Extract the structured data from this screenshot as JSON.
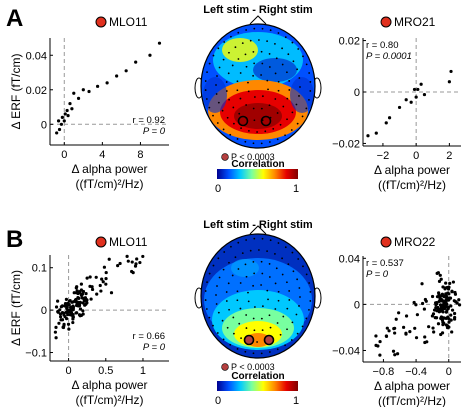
{
  "panels": [
    {
      "letter": "A",
      "center_title": "Left stim - Right stim",
      "topo_marker_label": "P < 0.0003",
      "colorbar": {
        "title": "Correlation",
        "min_label": "0",
        "max_label": "1"
      },
      "colormap": [
        "#00008f",
        "#0050ff",
        "#00c8ff",
        "#78ffa0",
        "#ffff00",
        "#ff8800",
        "#e60000",
        "#800000"
      ]
    },
    {
      "letter": "B",
      "center_title": "Left stim - Right stim",
      "topo_marker_label": "P < 0.0003",
      "colorbar": {
        "title": "Correlation",
        "min_label": "0",
        "max_label": "1"
      },
      "colormap": [
        "#00008f",
        "#0050ff",
        "#00c8ff",
        "#78ffa0",
        "#ffff00",
        "#ff8800",
        "#e60000",
        "#800000"
      ]
    }
  ],
  "chart_data": [
    {
      "type": "scatter",
      "title": "MLO11",
      "xlabel": "Δ alpha power",
      "xlabel2": "((fT/cm)²/Hz)",
      "ylabel": "Δ ERF (fT/cm)",
      "xlim": [
        -1.5,
        11
      ],
      "ylim": [
        -0.012,
        0.05
      ],
      "xticks": [
        0,
        4,
        8
      ],
      "xtick_labels": [
        "0",
        "4",
        "8"
      ],
      "yticks": [
        0,
        0.02,
        0.04
      ],
      "ytick_labels": [
        "0",
        "0.02",
        "0.04"
      ],
      "stats": [
        "r = 0.92",
        "P = 0"
      ],
      "stats_position": "bottom-right",
      "points": [
        [
          -0.8,
          -0.005
        ],
        [
          -0.6,
          0.002
        ],
        [
          -0.5,
          -0.003
        ],
        [
          -0.3,
          0.0
        ],
        [
          -0.2,
          0.004
        ],
        [
          0.0,
          0.002
        ],
        [
          0.1,
          0.006
        ],
        [
          0.3,
          0.008
        ],
        [
          0.4,
          0.005
        ],
        [
          0.6,
          0.012
        ],
        [
          0.8,
          0.009
        ],
        [
          1.0,
          0.018
        ],
        [
          1.5,
          0.015
        ],
        [
          2.0,
          0.02
        ],
        [
          2.6,
          0.019
        ],
        [
          3.5,
          0.022
        ],
        [
          4.5,
          0.024
        ],
        [
          5.5,
          0.028
        ],
        [
          6.5,
          0.031
        ],
        [
          7.5,
          0.036
        ],
        [
          9.0,
          0.04
        ],
        [
          10.0,
          0.047
        ]
      ]
    },
    {
      "type": "scatter",
      "title": "MRO21",
      "xlabel": "Δ alpha power",
      "xlabel2": "((fT/cm)²/Hz)",
      "ylabel": "",
      "xlim": [
        -3.2,
        2.7
      ],
      "ylim": [
        -0.021,
        0.021
      ],
      "xticks": [
        -2,
        0,
        2
      ],
      "xtick_labels": [
        "−2",
        "0",
        "2"
      ],
      "yticks": [
        -0.02,
        0,
        0.02
      ],
      "ytick_labels": [
        "−0.02",
        "0",
        "0.02"
      ],
      "stats": [
        "r = 0.80",
        "P = 0.0001"
      ],
      "stats_position": "top-left",
      "points": [
        [
          -2.9,
          -0.017
        ],
        [
          -2.4,
          -0.016
        ],
        [
          -1.8,
          -0.012
        ],
        [
          -1.6,
          -0.01
        ],
        [
          -1.0,
          -0.006
        ],
        [
          -0.6,
          -0.003
        ],
        [
          -0.3,
          -0.004
        ],
        [
          -0.1,
          0.001
        ],
        [
          0.0,
          -0.002
        ],
        [
          0.1,
          0.001
        ],
        [
          0.3,
          0.003
        ],
        [
          0.5,
          -0.001
        ],
        [
          2.0,
          0.004
        ],
        [
          2.1,
          0.008
        ]
      ]
    },
    {
      "type": "scatter",
      "title": "MLO11",
      "xlabel": "Δ alpha power",
      "xlabel2": "((fT/cm)²/Hz)",
      "ylabel": "Δ ERF (fT/cm)",
      "xlim": [
        -0.25,
        1.35
      ],
      "ylim": [
        -0.12,
        0.13
      ],
      "xticks": [
        0,
        0.5,
        1
      ],
      "xtick_labels": [
        "0",
        "0.5",
        "1"
      ],
      "yticks": [
        -0.1,
        0,
        0.1
      ],
      "ytick_labels": [
        "−0.1",
        "0",
        "0.1"
      ],
      "stats": [
        "r = 0.66",
        "P = 0"
      ],
      "stats_position": "bottom-right",
      "scatter_trend": {
        "n": 150,
        "slope": 0.14,
        "intercept": 0.0,
        "noise": 0.02,
        "x_center": 0.05,
        "x_spread": 0.12,
        "x_tail": 1.3,
        "seed": 7
      }
    },
    {
      "type": "scatter",
      "title": "MRO22",
      "xlabel": "Δ alpha power",
      "xlabel2": "((fT/cm)²/Hz)",
      "ylabel": "",
      "xlim": [
        -1.05,
        0.15
      ],
      "ylim": [
        -0.05,
        0.042
      ],
      "xticks": [
        -0.8,
        -0.4,
        0
      ],
      "xtick_labels": [
        "−0.8",
        "−0.4",
        "0"
      ],
      "yticks": [
        -0.04,
        0,
        0.04
      ],
      "ytick_labels": [
        "−0.04",
        "0",
        "0.04"
      ],
      "stats": [
        "r = 0.537",
        "P = 0"
      ],
      "stats_position": "top-left",
      "scatter_trend": {
        "n": 160,
        "slope": 0.035,
        "intercept": 0.0,
        "noise": 0.011,
        "x_center": -0.05,
        "x_spread": 0.08,
        "x_tail": -0.95,
        "seed": 11
      }
    }
  ]
}
